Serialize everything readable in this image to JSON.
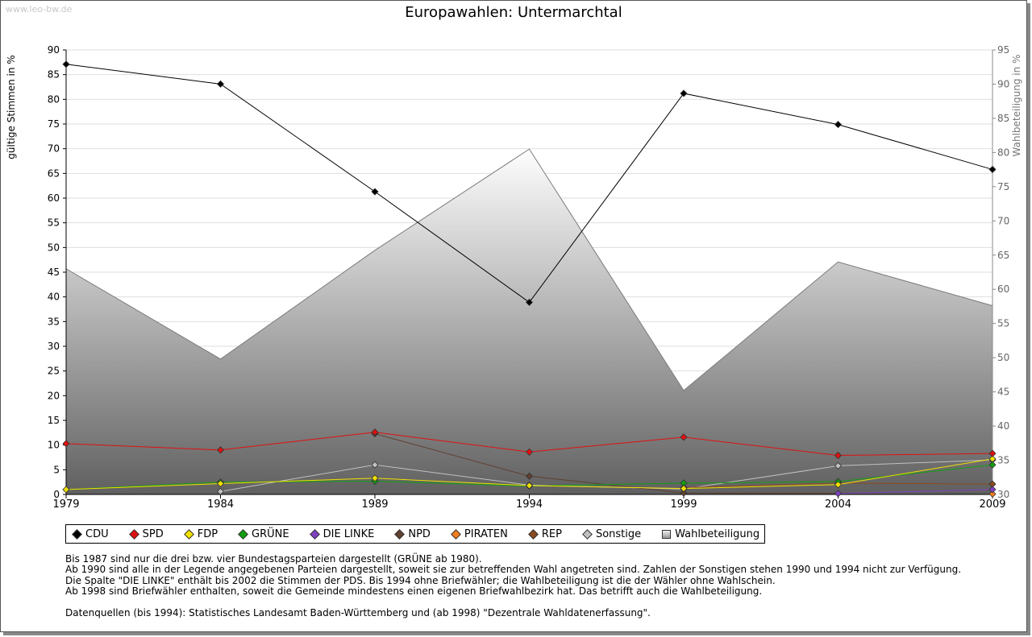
{
  "watermark": "www.leo-bw.de",
  "chart_data": {
    "type": "line",
    "title": "Europawahlen: Untermarchtal",
    "ylabel": "gültige Stimmen in %",
    "y2label": "Wahlbeteiligung in %",
    "x": [
      1979,
      1984,
      1989,
      1994,
      1999,
      2004,
      2009
    ],
    "ylim": [
      0,
      90
    ],
    "y2lim": [
      30,
      95
    ],
    "yticks": [
      0,
      5,
      10,
      15,
      20,
      25,
      30,
      35,
      40,
      45,
      50,
      55,
      60,
      65,
      70,
      75,
      80,
      85,
      90
    ],
    "y2ticks": [
      30,
      35,
      40,
      45,
      50,
      55,
      60,
      65,
      70,
      75,
      80,
      85,
      90,
      95
    ],
    "grid": true,
    "legend_position": "bottom",
    "series": [
      {
        "name": "CDU",
        "color": "#000000",
        "values": [
          87.1,
          83.1,
          61.3,
          38.9,
          81.2,
          74.9,
          65.8
        ]
      },
      {
        "name": "SPD",
        "color": "#e01010",
        "values": [
          10.3,
          9.0,
          12.6,
          8.6,
          11.6,
          7.9,
          8.3
        ]
      },
      {
        "name": "FDP",
        "color": "#f0e000",
        "values": [
          1.0,
          2.2,
          3.3,
          1.8,
          1.2,
          2.0,
          7.2
        ]
      },
      {
        "name": "GRÜNE",
        "color": "#10a010",
        "values": [
          1.0,
          2.5,
          2.7,
          1.7,
          2.3,
          2.6,
          6.0
        ]
      },
      {
        "name": "DIE LINKE",
        "color": "#8040c0",
        "values": [
          null,
          null,
          null,
          null,
          null,
          0.2,
          1.0
        ]
      },
      {
        "name": "NPD",
        "color": "#604030",
        "values": [
          null,
          null,
          12.3,
          3.7,
          0.3,
          0.2,
          null
        ]
      },
      {
        "name": "PIRATEN",
        "color": "#f08020",
        "values": [
          null,
          null,
          null,
          null,
          null,
          null,
          0.1
        ]
      },
      {
        "name": "REP",
        "color": "#8a4a20",
        "values": [
          null,
          null,
          null,
          null,
          1.4,
          2.3,
          2.1
        ]
      },
      {
        "name": "Sonstige",
        "color": "#c0c0c0",
        "values": [
          null,
          0.6,
          6.0,
          1.9,
          1.1,
          5.8,
          7.0
        ]
      },
      {
        "name": "Wahlbeteiligung",
        "color": "#888888",
        "axis": "right",
        "type": "area",
        "values": [
          63.0,
          49.8,
          65.7,
          80.5,
          45.2,
          64.0,
          57.6
        ]
      }
    ]
  },
  "notes": [
    "Bis 1987 sind nur die drei bzw. vier Bundestagsparteien dargestellt (GRÜNE ab 1980).",
    "Ab 1990 sind alle in der Legende angegebenen Parteien dargestellt, soweit sie zur betreffenden Wahl angetreten sind. Zahlen der Sonstigen stehen 1990 und 1994 nicht zur Verfügung.",
    "Die Spalte \"DIE LINKE\" enthält bis 2002 die Stimmen der PDS. Bis 1994 ohne Briefwähler; die Wahlbeteiligung ist die der Wähler ohne Wahlschein.",
    "Ab 1998 sind Briefwähler enthalten, soweit die Gemeinde mindestens einen eigenen Briefwahlbezirk hat. Das betrifft auch die Wahlbeteiligung.",
    "",
    "Datenquellen (bis 1994): Statistisches Landesamt Baden-Württemberg und (ab 1998) \"Dezentrale Wahldatenerfassung\"."
  ]
}
